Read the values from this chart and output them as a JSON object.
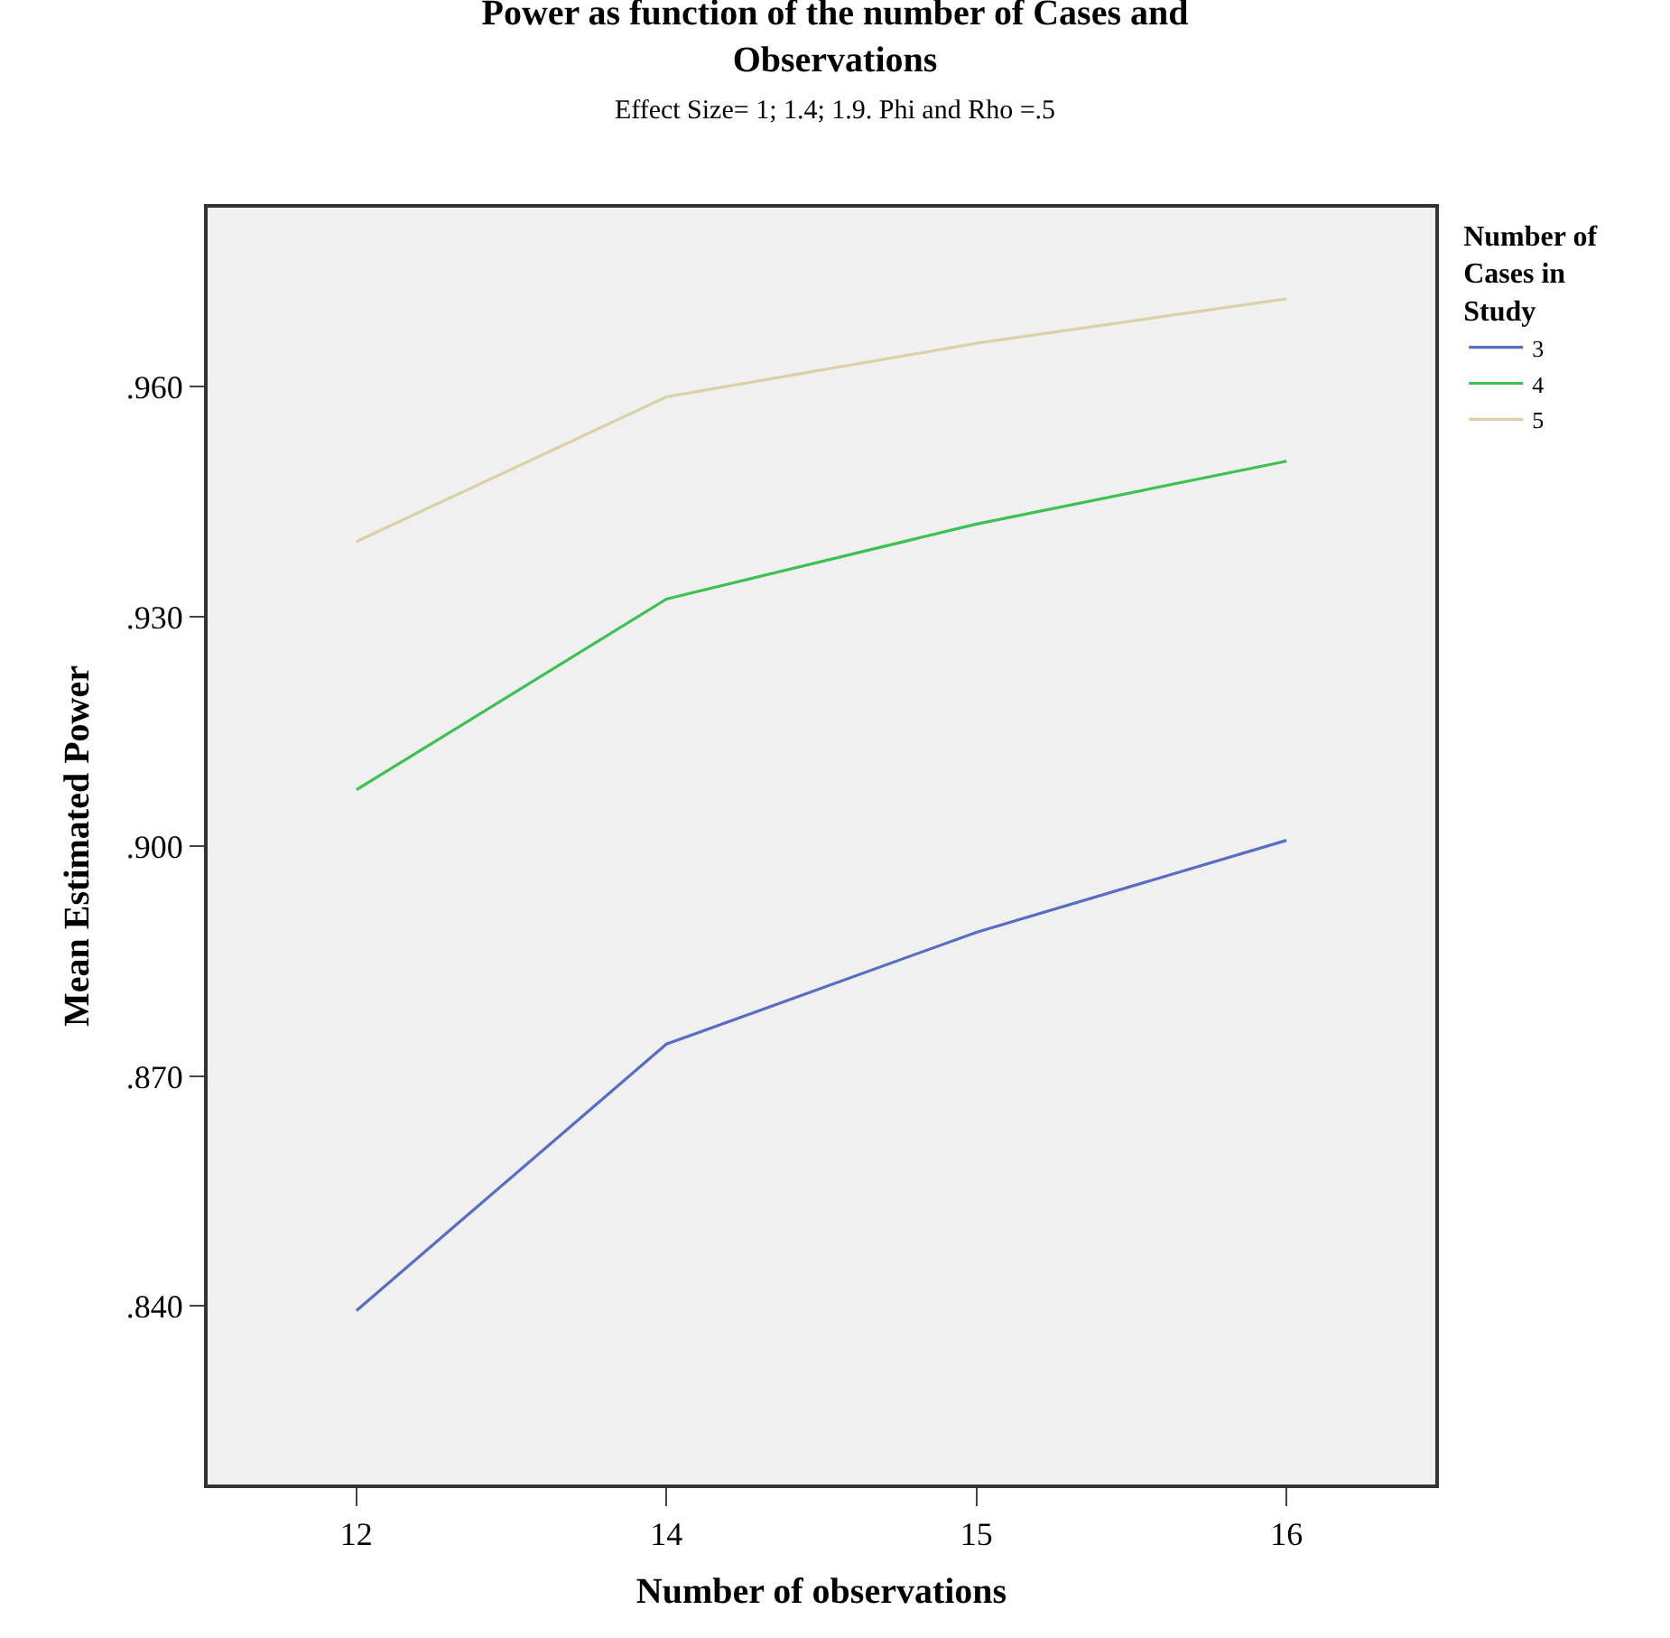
{
  "chart_data": {
    "type": "line",
    "title": "Power as function of the number of Cases and Observations",
    "subtitle": "Effect Size= 1; 1.4; 1.9. Phi and Rho =.5",
    "xlabel": "Number of observations",
    "ylabel": "Mean Estimated Power",
    "legend_title": "Number of Cases in Study",
    "categories": [
      "12",
      "14",
      "15",
      "16"
    ],
    "series": [
      {
        "name": "3",
        "color": "#5a6dc4",
        "values": [
          0.8394,
          0.8742,
          0.8888,
          0.9008
        ]
      },
      {
        "name": "4",
        "color": "#3cc152",
        "values": [
          0.9074,
          0.9323,
          0.9421,
          0.9503
        ]
      },
      {
        "name": "5",
        "color": "#d8d2a6",
        "values": [
          0.9398,
          0.9587,
          0.9657,
          0.9715
        ]
      }
    ],
    "ylim": [
      0.8167,
      0.9834
    ],
    "yticks": [
      {
        "value": 0.84,
        "label": ".840"
      },
      {
        "value": 0.87,
        "label": ".870"
      },
      {
        "value": 0.9,
        "label": ".900"
      },
      {
        "value": 0.93,
        "label": ".930"
      },
      {
        "value": 0.96,
        "label": ".960"
      }
    ],
    "grid": false,
    "legend": "top right",
    "marker": "none",
    "line_style": "solid"
  }
}
